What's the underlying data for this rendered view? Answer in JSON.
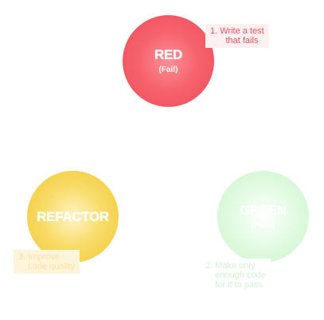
{
  "cycle": {
    "red": {
      "title": "RED",
      "subtitle": "(Fail)",
      "note": "1. Write a test\n    that fails",
      "color": "#f25c66"
    },
    "green": {
      "title": "GREEN",
      "subtitle": "(Pass)",
      "note": "2. Make only\n    enough code\n    for it to pass",
      "color": "#c9f4c9"
    },
    "refactor": {
      "title": "REFACTOR",
      "note": "3. Improve\n    code quality",
      "color": "#f5cf3f"
    }
  }
}
